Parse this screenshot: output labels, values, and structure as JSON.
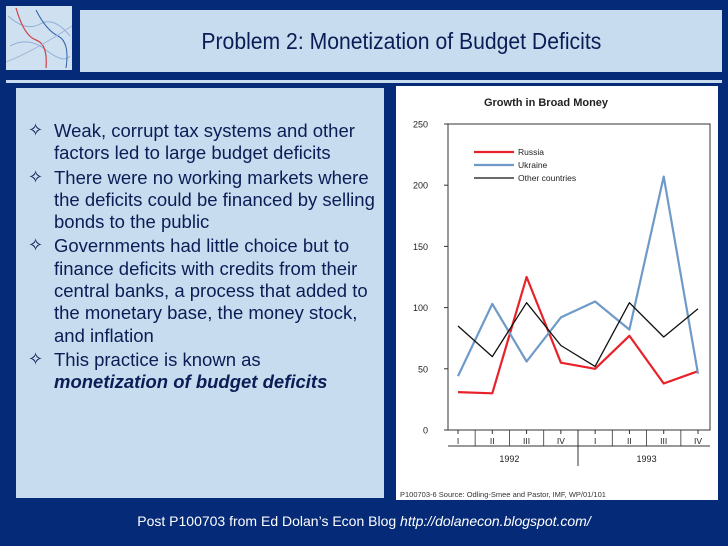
{
  "slide": {
    "title": "Problem 2: Monetization of Budget Deficits",
    "bullets": [
      "Weak, corrupt tax systems and other factors led to large budget deficits",
      "There were no working markets where the deficits could be financed by selling bonds to the public",
      "Governments had little choice but to finance deficits with credits from their central banks, a process that added to the monetary base, the money stock, and inflation"
    ],
    "last_bullet_prefix": "This practice is known as",
    "last_bullet_emphasis": "monetization of budget deficits",
    "footer_text": "Post P100703 from Ed Dolan’s Econ Blog",
    "footer_link": "http://dolanecon.blogspot.com/",
    "bullet_icon": "diamond-outline-icon"
  },
  "chart_data": {
    "type": "line",
    "title": "Growth in Broad Money",
    "categories": [
      "I",
      "II",
      "III",
      "IV",
      "I",
      "II",
      "III",
      "IV"
    ],
    "year_labels": [
      "1992",
      "1993"
    ],
    "ylim": [
      0,
      250
    ],
    "yticks": [
      0,
      50,
      100,
      150,
      200,
      250
    ],
    "legend_position": "top-right",
    "series": [
      {
        "name": "Russia",
        "color": "#e8222a",
        "values": [
          31,
          30,
          125,
          55,
          50,
          77,
          38,
          48
        ]
      },
      {
        "name": "Ukraine",
        "color": "#6f9ac8",
        "values": [
          44,
          103,
          56,
          92,
          105,
          82,
          207,
          46
        ]
      },
      {
        "name": "Other countries",
        "color": "#111111",
        "values": [
          85,
          60,
          104,
          69,
          52,
          104,
          76,
          99
        ]
      }
    ],
    "source": "P100703-6 Source: Odling-Smee and Pastor, IMF, WP/01/101"
  }
}
